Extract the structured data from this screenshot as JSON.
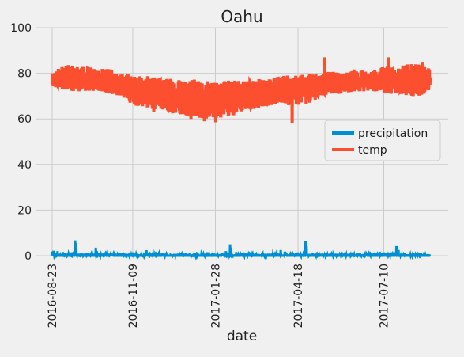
{
  "chart_data": {
    "type": "line",
    "title": "Oahu",
    "xlabel": "date",
    "ylabel": "",
    "ylim": [
      0,
      100
    ],
    "yticks": [
      0,
      20,
      40,
      60,
      80,
      100
    ],
    "x_start": "2016-08-23",
    "x_end": "2017-08-23",
    "xticks": [
      "2016-08-23",
      "2016-11-09",
      "2017-01-28",
      "2017-04-18",
      "2017-07-10"
    ],
    "grid": true,
    "legend_position": "center-right",
    "series": [
      {
        "name": "precipitation",
        "color": "#008fd5",
        "points": [
          [
            "2016-08-23",
            1.8
          ],
          [
            "2016-08-24",
            2.2
          ],
          [
            "2016-08-28",
            2.0
          ],
          [
            "2016-09-02",
            1.6
          ],
          [
            "2016-09-07",
            1.2
          ],
          [
            "2016-09-11",
            1.5
          ],
          [
            "2016-09-14",
            6.7
          ],
          [
            "2016-09-15",
            5.5
          ],
          [
            "2016-09-20",
            1.0
          ],
          [
            "2016-09-27",
            1.3
          ],
          [
            "2016-10-04",
            3.5
          ],
          [
            "2016-10-05",
            2.0
          ],
          [
            "2016-10-14",
            0.5
          ],
          [
            "2016-10-20",
            0.6
          ],
          [
            "2016-10-27",
            1.2
          ],
          [
            "2016-11-03",
            0.8
          ],
          [
            "2016-11-09",
            0.3
          ],
          [
            "2016-11-15",
            0.5
          ],
          [
            "2016-11-22",
            2.4
          ],
          [
            "2016-11-27",
            0.9
          ],
          [
            "2016-12-04",
            1.1
          ],
          [
            "2016-12-11",
            1.4
          ],
          [
            "2016-12-20",
            0.8
          ],
          [
            "2016-12-30",
            0.6
          ],
          [
            "2017-01-08",
            1.2
          ],
          [
            "2017-01-20",
            1.5
          ],
          [
            "2017-01-28",
            0.4
          ],
          [
            "2017-02-03",
            1.2
          ],
          [
            "2017-02-07",
            2.0
          ],
          [
            "2017-02-11",
            5.0
          ],
          [
            "2017-02-12",
            3.5
          ],
          [
            "2017-02-17",
            1.6
          ],
          [
            "2017-02-24",
            1.2
          ],
          [
            "2017-03-03",
            1.5
          ],
          [
            "2017-03-10",
            0.8
          ],
          [
            "2017-03-17",
            0.5
          ],
          [
            "2017-03-24",
            0.6
          ],
          [
            "2017-04-01",
            2.5
          ],
          [
            "2017-04-05",
            1.8
          ],
          [
            "2017-04-12",
            1.5
          ],
          [
            "2017-04-18",
            0.6
          ],
          [
            "2017-04-25",
            6.3
          ],
          [
            "2017-04-26",
            4.2
          ],
          [
            "2017-05-02",
            1.0
          ],
          [
            "2017-05-10",
            0.8
          ],
          [
            "2017-05-20",
            0.6
          ],
          [
            "2017-06-01",
            0.9
          ],
          [
            "2017-06-10",
            1.2
          ],
          [
            "2017-06-20",
            0.7
          ],
          [
            "2017-06-30",
            1.0
          ],
          [
            "2017-07-10",
            0.5
          ],
          [
            "2017-07-17",
            1.5
          ],
          [
            "2017-07-22",
            4.2
          ],
          [
            "2017-07-24",
            2.5
          ],
          [
            "2017-07-30",
            1.2
          ],
          [
            "2017-08-07",
            0.8
          ],
          [
            "2017-08-15",
            0.6
          ],
          [
            "2017-08-23",
            0.5
          ]
        ]
      },
      {
        "name": "temp",
        "color": "#fc4f30",
        "envelope_note": "daily readings fill band between low and high",
        "band": [
          [
            "2016-08-23",
            73,
            80
          ],
          [
            "2016-09-03",
            73,
            84
          ],
          [
            "2016-09-14",
            72,
            83
          ],
          [
            "2016-09-25",
            72,
            83
          ],
          [
            "2016-10-06",
            72,
            82
          ],
          [
            "2016-10-17",
            71,
            82
          ],
          [
            "2016-10-28",
            70,
            80
          ],
          [
            "2016-11-09",
            66,
            79
          ],
          [
            "2016-11-20",
            65,
            79
          ],
          [
            "2016-12-01",
            64,
            78
          ],
          [
            "2016-12-12",
            63,
            78
          ],
          [
            "2016-12-23",
            62,
            78
          ],
          [
            "2017-01-03",
            61,
            78
          ],
          [
            "2017-01-14",
            60,
            77
          ],
          [
            "2017-01-28",
            60,
            76
          ],
          [
            "2017-02-08",
            61,
            78
          ],
          [
            "2017-02-19",
            62,
            77
          ],
          [
            "2017-03-02",
            64,
            77
          ],
          [
            "2017-03-13",
            65,
            78
          ],
          [
            "2017-03-24",
            66,
            78
          ],
          [
            "2017-04-04",
            66,
            79
          ],
          [
            "2017-04-18",
            66,
            79
          ],
          [
            "2017-04-29",
            67,
            80
          ],
          [
            "2017-05-10",
            70,
            80
          ],
          [
            "2017-05-21",
            71,
            81
          ],
          [
            "2017-06-01",
            71,
            80
          ],
          [
            "2017-06-12",
            72,
            82
          ],
          [
            "2017-06-23",
            72,
            81
          ],
          [
            "2017-07-04",
            72,
            82
          ],
          [
            "2017-07-10",
            71,
            83
          ],
          [
            "2017-07-21",
            71,
            83
          ],
          [
            "2017-08-01",
            70,
            84
          ],
          [
            "2017-08-12",
            70,
            84
          ],
          [
            "2017-08-23",
            72,
            82
          ]
        ],
        "spikes": [
          [
            "2016-11-29",
            63
          ],
          [
            "2017-01-04",
            60
          ],
          [
            "2017-01-17",
            59
          ],
          [
            "2017-01-28",
            58.5
          ],
          [
            "2017-04-12",
            58
          ],
          [
            "2017-05-13",
            87
          ],
          [
            "2017-07-14",
            87
          ],
          [
            "2017-08-16",
            85
          ]
        ]
      }
    ]
  }
}
